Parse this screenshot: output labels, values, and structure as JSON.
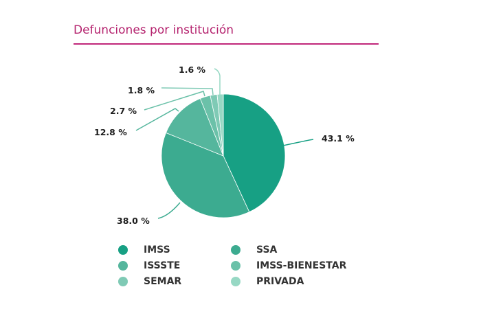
{
  "chart_data": {
    "type": "pie",
    "title": "Defunciones por institución",
    "slices": [
      {
        "name": "IMSS",
        "value": 43.1,
        "label": "43.1 %",
        "color": "#17a084"
      },
      {
        "name": "SSA",
        "value": 38.0,
        "label": "38.0 %",
        "color": "#3cab90"
      },
      {
        "name": "ISSSTE",
        "value": 12.8,
        "label": "12.8 %",
        "color": "#55b69d"
      },
      {
        "name": "IMSS-BIENESTAR",
        "value": 2.7,
        "label": "2.7 %",
        "color": "#6bc1a9"
      },
      {
        "name": "SEMAR",
        "value": 1.8,
        "label": "1.8 %",
        "color": "#7fcab5"
      },
      {
        "name": "PRIVADA",
        "value": 1.6,
        "label": "1.6 %",
        "color": "#97d8c4"
      }
    ],
    "legend_position": "bottom"
  }
}
